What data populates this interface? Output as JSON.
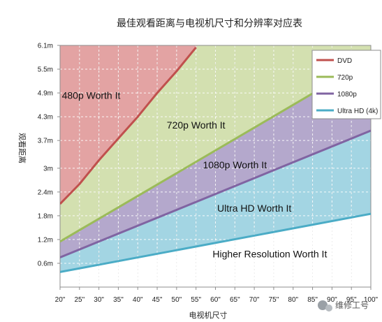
{
  "chart_data": {
    "type": "area",
    "title": "最佳观看距离与电视机尺寸和分辨率对应表",
    "xlabel": "电视机尺寸",
    "ylabel": "观看距离",
    "categories": [
      "20\"",
      "25\"",
      "30\"",
      "35\"",
      "40\"",
      "45\"",
      "50\"",
      "55\"",
      "60\"",
      "65\"",
      "70\"",
      "75\"",
      "80\"",
      "85\"",
      "90\"",
      "95\"",
      "100\""
    ],
    "x": [
      20,
      25,
      30,
      35,
      40,
      45,
      50,
      55,
      60,
      65,
      70,
      75,
      80,
      85,
      90,
      95,
      100
    ],
    "y_ticks": [
      "0.6m",
      "1.2m",
      "1.8m",
      "2.4m",
      "3m",
      "3.7m",
      "4.3m",
      "4.9m",
      "5.5m",
      "6.1m"
    ],
    "y_tick_values": [
      0.6,
      1.2,
      1.8,
      2.4,
      3.0,
      3.7,
      4.3,
      4.9,
      5.5,
      6.1
    ],
    "ylim": [
      0,
      6.1
    ],
    "xlim": [
      20,
      100
    ],
    "grid": true,
    "legend_position": "top-right",
    "series": [
      {
        "name": "DVD",
        "color": "#c0504d",
        "x": [
          20,
          25,
          30,
          35,
          40,
          45,
          50,
          55
        ],
        "values": [
          2.1,
          2.6,
          3.2,
          3.75,
          4.3,
          4.9,
          5.45,
          6.05
        ]
      },
      {
        "name": "720p",
        "color": "#9bbb59",
        "x": [
          20,
          100
        ],
        "values": [
          1.15,
          5.75
        ]
      },
      {
        "name": "1080p",
        "color": "#8064a2",
        "x": [
          20,
          100
        ],
        "values": [
          0.75,
          3.95
        ]
      },
      {
        "name": "Ultra HD (4k)",
        "color": "#4bacc6",
        "x": [
          20,
          100
        ],
        "values": [
          0.38,
          1.85
        ]
      }
    ],
    "zone_colors": {
      "dvd_zone": "#e3a3a3",
      "p720_zone": "#d3e0b0",
      "p1080_zone": "#b4a8cc",
      "uhd_zone": "#a3d5e3"
    },
    "annotations": [
      {
        "text": "480p Worth It",
        "x": 28,
        "y": 4.75
      },
      {
        "text": "720p Worth It",
        "x": 55,
        "y": 4.0
      },
      {
        "text": "1080p Worth It",
        "x": 65,
        "y": 3.0
      },
      {
        "text": "Ultra HD Worth It",
        "x": 70,
        "y": 1.9
      },
      {
        "text": "Higher Resolution Worth It",
        "x": 74,
        "y": 0.75
      }
    ]
  },
  "watermark": {
    "text": "维修工号"
  }
}
